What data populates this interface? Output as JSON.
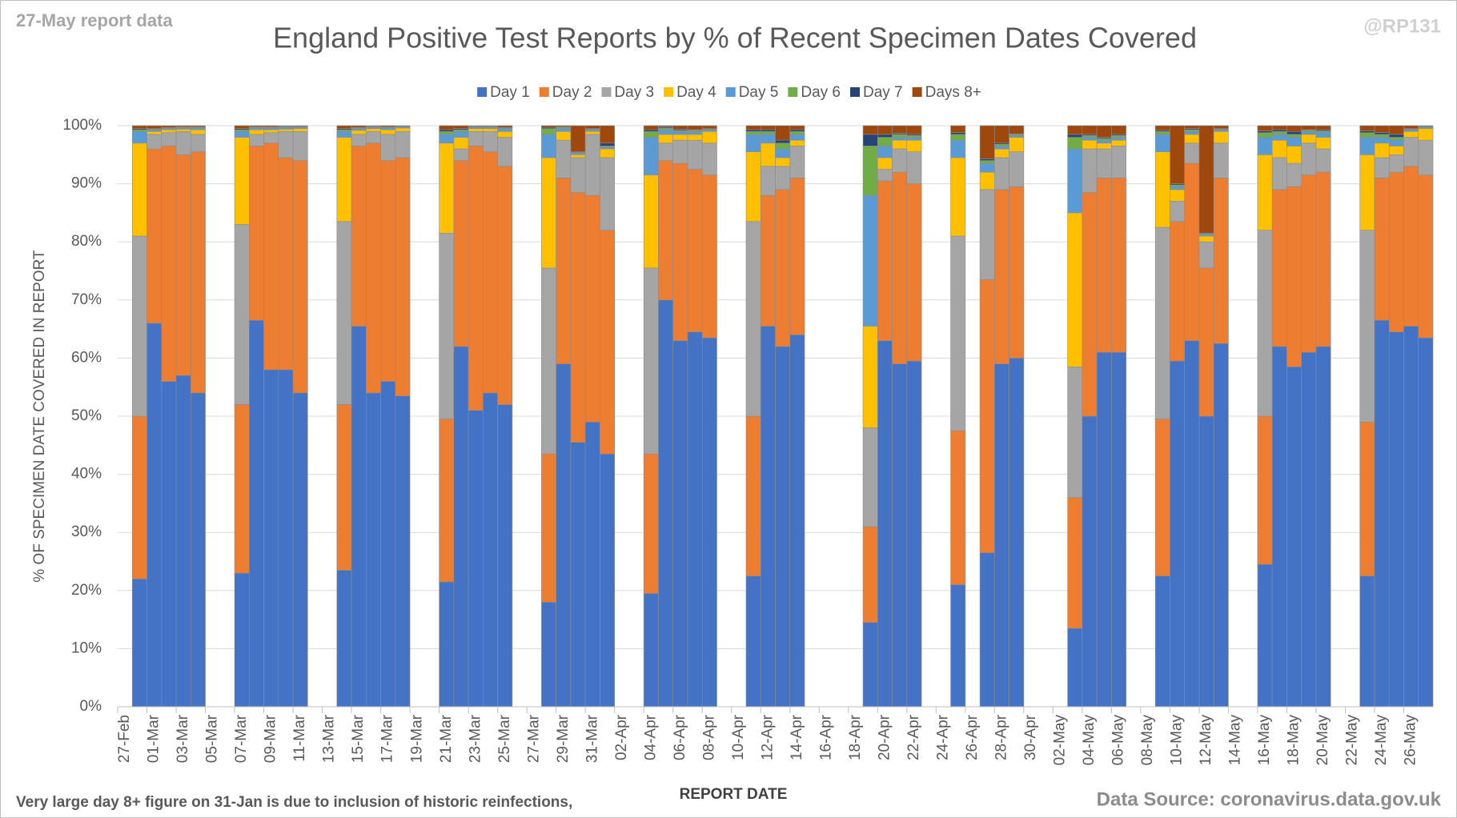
{
  "chart_data": {
    "type": "stacked_bar",
    "report_note": "27-May report data",
    "handle": "@RP131",
    "title": "England Positive Test Reports by % of Recent Specimen Dates Covered",
    "y_label": "% OF SPECIMEN DATE COVERED IN REPORT",
    "x_label": "REPORT DATE",
    "footnote": "Very large day 8+ figure on 31-Jan is due to inclusion of historic reinfections,",
    "source": "Data Source: coronavirus.data.gov.uk",
    "legend": "top",
    "grid": true,
    "ylim": [
      0,
      100
    ],
    "yticks": [
      {
        "value": 0,
        "label": "0%"
      },
      {
        "value": 10,
        "label": "10%"
      },
      {
        "value": 20,
        "label": "20%"
      },
      {
        "value": 30,
        "label": "30%"
      },
      {
        "value": 40,
        "label": "40%"
      },
      {
        "value": 50,
        "label": "50%"
      },
      {
        "value": 60,
        "label": "60%"
      },
      {
        "value": 70,
        "label": "70%"
      },
      {
        "value": 80,
        "label": "80%"
      },
      {
        "value": 90,
        "label": "90%"
      },
      {
        "value": 100,
        "label": "100%"
      }
    ],
    "categories": [
      "27-Feb",
      null,
      "01-Mar",
      null,
      "03-Mar",
      null,
      "05-Mar",
      null,
      "07-Mar",
      null,
      "09-Mar",
      null,
      "11-Mar",
      null,
      "13-Mar",
      null,
      "15-Mar",
      null,
      "17-Mar",
      null,
      "19-Mar",
      null,
      "21-Mar",
      null,
      "23-Mar",
      null,
      "25-Mar",
      null,
      "27-Mar",
      null,
      "29-Mar",
      null,
      "31-Mar",
      null,
      "02-Apr",
      null,
      "04-Apr",
      null,
      "06-Apr",
      null,
      "08-Apr",
      null,
      "10-Apr",
      null,
      "12-Apr",
      null,
      "14-Apr",
      null,
      "16-Apr",
      null,
      "18-Apr",
      null,
      "20-Apr",
      null,
      "22-Apr",
      null,
      "24-Apr",
      null,
      "26-Apr",
      null,
      "28-Apr",
      null,
      "30-Apr",
      null,
      "02-May",
      null,
      "04-May",
      null,
      "06-May",
      null,
      "08-May",
      null,
      "10-May",
      null,
      "12-May",
      null,
      "14-May",
      null,
      "16-May",
      null,
      "18-May",
      null,
      "20-May",
      null,
      "22-May",
      null,
      "24-May",
      null,
      "26-May",
      null
    ],
    "series": [
      {
        "name": "Day 1",
        "color": "#4472c4",
        "values": [
          null,
          22,
          66,
          56,
          57,
          54,
          null,
          null,
          23,
          66.5,
          58,
          58,
          54,
          null,
          null,
          23.5,
          65.5,
          54,
          56,
          53.5,
          null,
          null,
          21.5,
          62,
          51,
          54,
          52,
          null,
          null,
          18,
          59,
          45.5,
          49,
          43.5,
          null,
          null,
          19.5,
          70,
          63,
          64.5,
          63.5,
          null,
          null,
          22.5,
          65.5,
          62,
          64,
          null,
          null,
          null,
          null,
          14.5,
          63,
          59,
          59.5,
          null,
          null,
          21,
          null,
          26.5,
          59,
          60,
          null,
          null,
          null,
          13.5,
          50,
          61,
          61,
          null,
          null,
          22.5,
          59.5,
          63,
          50,
          62.5,
          null,
          null,
          24.5,
          62,
          58.5,
          61,
          62,
          null,
          null,
          22.5,
          66.5,
          64.5,
          65.5,
          63.5
        ]
      },
      {
        "name": "Day 2",
        "color": "#ed7d31",
        "values": [
          null,
          28,
          30,
          40.5,
          38,
          41.5,
          null,
          null,
          29,
          30,
          39,
          36.5,
          40,
          null,
          null,
          28.5,
          31,
          43,
          38,
          41,
          null,
          null,
          28,
          32,
          45.5,
          41.5,
          41,
          null,
          null,
          25.5,
          32,
          43,
          39,
          38.5,
          null,
          null,
          24,
          24,
          30.5,
          28,
          28,
          null,
          null,
          27.5,
          22.5,
          27,
          27,
          null,
          null,
          null,
          null,
          16.5,
          27.5,
          33,
          30.5,
          null,
          null,
          26.5,
          null,
          47,
          30,
          29.5,
          null,
          null,
          null,
          22.5,
          38.5,
          30,
          30,
          null,
          null,
          27,
          24,
          30.5,
          25.5,
          28.5,
          null,
          null,
          25.5,
          27,
          31,
          30.5,
          30,
          null,
          null,
          26.5,
          24.5,
          27.5,
          27.5,
          28
        ]
      },
      {
        "name": "Day 3",
        "color": "#a5a5a5",
        "values": [
          null,
          31,
          2.5,
          2.3,
          4,
          3,
          null,
          null,
          31,
          2,
          1.8,
          4.5,
          5,
          null,
          null,
          31.5,
          2,
          2,
          4.5,
          4.5,
          null,
          null,
          32,
          2,
          2.5,
          3.5,
          5,
          null,
          null,
          32,
          6.5,
          6,
          10.5,
          12.5,
          null,
          null,
          32,
          3,
          4,
          5,
          5.5,
          null,
          null,
          33.5,
          5,
          4,
          5.5,
          null,
          null,
          null,
          null,
          17,
          2,
          4,
          5.5,
          null,
          null,
          33.5,
          null,
          15.5,
          5.5,
          6,
          null,
          null,
          null,
          22.5,
          7.5,
          5,
          5.5,
          null,
          null,
          33,
          3.5,
          3.5,
          4.5,
          6,
          null,
          null,
          32,
          5.5,
          4,
          5.5,
          4,
          null,
          null,
          33,
          3.5,
          3,
          5,
          6
        ]
      },
      {
        "name": "Day 4",
        "color": "#ffc000",
        "values": [
          null,
          16,
          0.5,
          0.5,
          0.4,
          0.8,
          null,
          null,
          15,
          0.8,
          0.5,
          0.4,
          0.5,
          null,
          null,
          14.5,
          0.7,
          0.5,
          0.8,
          0.6,
          null,
          null,
          15.5,
          2,
          0.5,
          0.5,
          1,
          null,
          null,
          19,
          1.5,
          0.5,
          0.5,
          1.5,
          null,
          null,
          16,
          1.5,
          1,
          1,
          2,
          null,
          null,
          12,
          4,
          1.5,
          1,
          null,
          null,
          null,
          null,
          17.5,
          2,
          1.5,
          2,
          null,
          null,
          13.5,
          null,
          3,
          1.5,
          2.5,
          null,
          null,
          null,
          26.5,
          1.5,
          1,
          1,
          null,
          null,
          13,
          2,
          1.5,
          1,
          2,
          null,
          null,
          13,
          3,
          3,
          1.5,
          2,
          null,
          null,
          13,
          2.5,
          1.5,
          1,
          2
        ]
      },
      {
        "name": "Day 5",
        "color": "#5b9bd5",
        "values": [
          null,
          2,
          0.3,
          0.2,
          0.2,
          0.3,
          null,
          null,
          1,
          0.3,
          0.3,
          0.3,
          0.2,
          null,
          null,
          1,
          0.3,
          0.2,
          0.3,
          0.2,
          null,
          null,
          1.5,
          1,
          0.2,
          0.2,
          0.5,
          null,
          null,
          4,
          0.5,
          0.3,
          0.3,
          0.3,
          null,
          null,
          6.5,
          0.8,
          0.5,
          0.5,
          0.3,
          null,
          null,
          3,
          1.5,
          1.5,
          1,
          null,
          null,
          null,
          null,
          22.5,
          2,
          0.5,
          0.5,
          null,
          null,
          3,
          null,
          1.5,
          0.5,
          0.3,
          null,
          null,
          null,
          11,
          0.5,
          0.5,
          0.5,
          null,
          null,
          3,
          0.5,
          0.5,
          0.3,
          0.3,
          null,
          null,
          3,
          1,
          1.5,
          0.5,
          0.8,
          null,
          null,
          3,
          1,
          1,
          0.3,
          0.2
        ]
      },
      {
        "name": "Day 6",
        "color": "#70ad47",
        "values": [
          null,
          0.3,
          0.1,
          0.1,
          0.1,
          0.1,
          null,
          null,
          0.3,
          0.1,
          0.1,
          0.1,
          0.1,
          null,
          null,
          0.3,
          0.1,
          0.1,
          0.1,
          0.1,
          null,
          null,
          0.5,
          0.3,
          0.1,
          0.1,
          0.1,
          null,
          null,
          1,
          0.2,
          0.1,
          0.1,
          0.2,
          null,
          null,
          1,
          0.3,
          0.2,
          0.2,
          0.1,
          null,
          null,
          0.5,
          0.5,
          1,
          0.5,
          null,
          null,
          null,
          null,
          8.5,
          1.5,
          0.5,
          0.3,
          null,
          null,
          1,
          null,
          0.5,
          0.3,
          0.2,
          null,
          null,
          null,
          2,
          0.3,
          0.3,
          0.3,
          null,
          null,
          0.5,
          0.3,
          0.3,
          0.1,
          0.1,
          null,
          null,
          0.8,
          0.5,
          0.5,
          0.2,
          0.3,
          null,
          null,
          0.8,
          0.5,
          0.5,
          0.1,
          0.1
        ]
      },
      {
        "name": "Day 7",
        "color": "#264478",
        "values": [
          null,
          0.2,
          0.1,
          0.1,
          0.1,
          0.1,
          null,
          null,
          0.2,
          0.1,
          0.1,
          0.1,
          0.1,
          null,
          null,
          0.2,
          0.1,
          0.1,
          0.1,
          0.1,
          null,
          null,
          0.3,
          0.2,
          0.1,
          0.1,
          0.1,
          null,
          null,
          0.2,
          0.1,
          0.1,
          0.1,
          0.5,
          null,
          null,
          0.3,
          0.2,
          0.2,
          0.1,
          0.1,
          null,
          null,
          0.3,
          0.3,
          0.5,
          0.3,
          null,
          null,
          null,
          null,
          2,
          0.5,
          0.2,
          0.2,
          null,
          null,
          0.3,
          null,
          0.3,
          0.2,
          0.1,
          null,
          null,
          null,
          0.5,
          0.2,
          0.2,
          0.2,
          null,
          null,
          0.2,
          0.2,
          0.2,
          0.1,
          0.1,
          null,
          null,
          0.3,
          0.3,
          0.5,
          0.1,
          0.2,
          null,
          null,
          0.3,
          0.3,
          0.5,
          0.1,
          0.1
        ]
      },
      {
        "name": "Days 8+",
        "color": "#9e480e",
        "values": [
          null,
          0.5,
          0.5,
          0.3,
          0.2,
          0.2,
          null,
          null,
          0.5,
          0.2,
          0.2,
          0.1,
          0.1,
          null,
          null,
          0.5,
          0.3,
          0.1,
          0.2,
          0,
          null,
          null,
          0.7,
          0.5,
          0.1,
          0.1,
          0.3,
          null,
          null,
          0.3,
          0.2,
          4.5,
          0.5,
          3,
          null,
          null,
          0.7,
          0.2,
          0.6,
          0.7,
          0.5,
          null,
          null,
          0.7,
          0.7,
          2.5,
          0.7,
          null,
          null,
          null,
          null,
          1.5,
          1.5,
          1.3,
          1.5,
          null,
          null,
          1.2,
          null,
          5.7,
          3,
          1.4,
          null,
          null,
          null,
          1.5,
          1.5,
          2,
          1.5,
          null,
          null,
          0.8,
          10,
          0.5,
          18.5,
          0.5,
          null,
          null,
          0.9,
          0.7,
          1,
          0.7,
          0.7,
          null,
          null,
          0.9,
          1.2,
          1.5,
          0.5,
          0.1
        ]
      }
    ]
  }
}
